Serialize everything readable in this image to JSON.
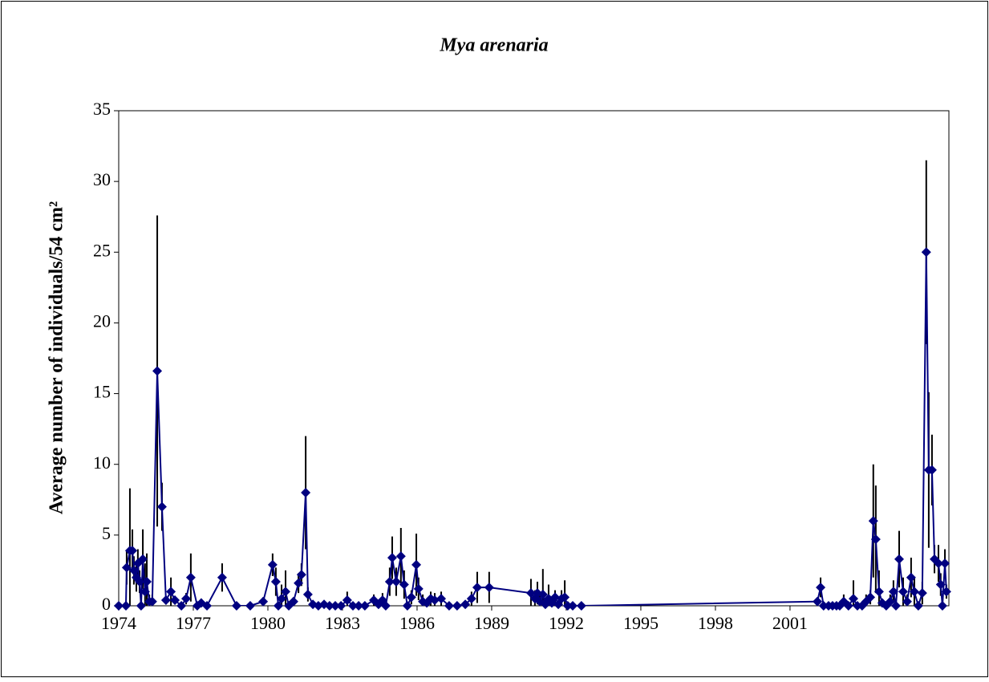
{
  "chart_data": {
    "type": "line",
    "title": "Mya arenaria",
    "y_label": "Average number of individuals/54 cm²",
    "xlim": [
      1974,
      2007.39
    ],
    "xticks": [
      1974,
      1977,
      1980,
      1983,
      1986,
      1989,
      1992,
      1995,
      1998,
      2001
    ],
    "ylim": [
      0,
      35
    ],
    "yticks": [
      0,
      5,
      10,
      15,
      20,
      25,
      30,
      35
    ],
    "grid": false,
    "error_color": "#000000",
    "x": [
      1974.0,
      1974.29,
      1974.32,
      1974.45,
      1974.55,
      1974.61,
      1974.71,
      1974.77,
      1974.84,
      1974.9,
      1974.97,
      1975.06,
      1975.13,
      1975.23,
      1975.35,
      1975.55,
      1975.74,
      1975.9,
      1976.1,
      1976.26,
      1976.52,
      1976.71,
      1976.9,
      1977.16,
      1977.32,
      1977.55,
      1978.16,
      1978.74,
      1979.29,
      1979.81,
      1980.19,
      1980.32,
      1980.42,
      1980.55,
      1980.71,
      1980.84,
      1981.03,
      1981.23,
      1981.35,
      1981.52,
      1981.61,
      1981.81,
      1982.03,
      1982.26,
      1982.48,
      1982.71,
      1982.94,
      1983.19,
      1983.42,
      1983.65,
      1983.9,
      1984.26,
      1984.45,
      1984.61,
      1984.74,
      1984.9,
      1985.0,
      1985.16,
      1985.35,
      1985.48,
      1985.61,
      1985.77,
      1985.97,
      1986.06,
      1986.23,
      1986.39,
      1986.55,
      1986.71,
      1986.97,
      1987.29,
      1987.61,
      1987.94,
      1988.19,
      1988.42,
      1988.9,
      1990.58,
      1990.74,
      1990.84,
      1990.94,
      1991.06,
      1991.16,
      1991.29,
      1991.42,
      1991.55,
      1991.68,
      1991.81,
      1991.94,
      1992.06,
      1992.26,
      1992.61,
      2002.1,
      2002.23,
      2002.35,
      2002.55,
      2002.71,
      2002.87,
      2003.0,
      2003.16,
      2003.35,
      2003.55,
      2003.71,
      2003.9,
      2004.06,
      2004.23,
      2004.35,
      2004.45,
      2004.58,
      2004.71,
      2004.87,
      2005.03,
      2005.16,
      2005.26,
      2005.39,
      2005.55,
      2005.71,
      2005.87,
      2006.0,
      2006.16,
      2006.32,
      2006.48,
      2006.58,
      2006.71,
      2006.81,
      2006.97,
      2007.06,
      2007.13,
      2007.23,
      2007.29
    ],
    "series": [
      {
        "color": "#000080",
        "values": [
          0,
          0,
          2.7,
          3.9,
          3.9,
          2.5,
          2.0,
          3.0,
          1.7,
          0,
          3.3,
          1.0,
          1.7,
          0.3,
          0.3,
          16.6,
          7.0,
          0.4,
          1.0,
          0.4,
          0,
          0.5,
          2.0,
          0,
          0.2,
          0,
          2.0,
          0,
          0,
          0.3,
          2.9,
          1.7,
          0,
          0.5,
          1.0,
          0,
          0.3,
          1.6,
          2.2,
          8.0,
          0.8,
          0.1,
          0,
          0.1,
          0,
          0,
          0,
          0.4,
          0,
          0,
          0,
          0.4,
          0.1,
          0.4,
          0,
          1.7,
          3.4,
          1.7,
          3.5,
          1.5,
          0,
          0.6,
          2.9,
          1.2,
          0.3,
          0.2,
          0.5,
          0.4,
          0.5,
          0,
          0,
          0.1,
          0.5,
          1.3,
          1.3,
          0.9,
          0.5,
          0.9,
          0.3,
          0.8,
          0.1,
          0.5,
          0.2,
          0.6,
          0.1,
          0.5,
          0.6,
          0,
          0,
          0,
          0.3,
          1.3,
          0,
          0,
          0,
          0,
          0,
          0.3,
          0,
          0.5,
          0,
          0,
          0.3,
          0.6,
          6.0,
          4.7,
          1.0,
          0.2,
          0,
          0.3,
          1.0,
          0,
          3.3,
          1.0,
          0.3,
          2.0,
          1.0,
          0,
          0.9,
          25,
          9.6,
          9.6,
          3.3,
          3.0,
          1.5,
          0,
          3.0,
          1.0
        ],
        "errors": [
          0,
          0,
          1.2,
          4.4,
          1.5,
          1.0,
          1.0,
          1.0,
          0.8,
          0,
          2.1,
          2.0,
          2.0,
          0.5,
          0.5,
          11.0,
          1.7,
          0.3,
          1.0,
          0.3,
          0,
          0.4,
          1.7,
          0,
          0.3,
          0,
          1.0,
          0,
          0,
          0.3,
          0.8,
          1.0,
          0,
          1.0,
          1.5,
          0,
          0.3,
          0.7,
          0.8,
          4.0,
          0.5,
          0.2,
          0,
          0.2,
          0,
          0,
          0,
          0.6,
          0,
          0,
          0,
          0.4,
          0.3,
          0.5,
          0,
          1.0,
          1.5,
          1.0,
          2.0,
          1.0,
          0,
          0.5,
          2.2,
          0.8,
          0.5,
          0.3,
          0.5,
          0.5,
          0.5,
          0,
          0,
          0.2,
          0.5,
          1.1,
          1.1,
          1.0,
          0.6,
          0.8,
          0.5,
          1.8,
          0.2,
          1.0,
          0.3,
          0.5,
          0.2,
          0.6,
          1.2,
          0,
          0,
          0,
          0.3,
          0.7,
          0,
          0,
          0,
          0,
          0,
          0.5,
          0,
          1.3,
          0,
          0,
          0.5,
          0.5,
          4.0,
          3.8,
          1.5,
          0.3,
          0,
          0.5,
          0.8,
          0,
          2.0,
          1.0,
          0.5,
          1.4,
          1.0,
          0,
          0.8,
          6.5,
          5.5,
          2.5,
          1.0,
          1.3,
          0.8,
          0,
          1.0,
          0.5
        ]
      }
    ]
  }
}
